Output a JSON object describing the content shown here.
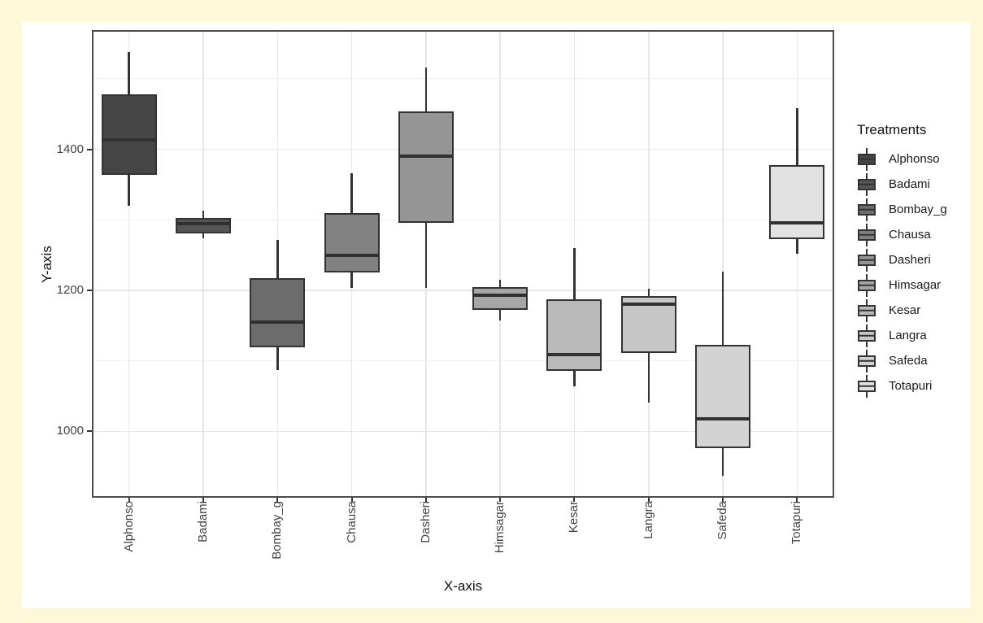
{
  "window": {
    "frame_background": "#FCF8D8",
    "canvas_background": "#FFFFFF"
  },
  "chart_data": {
    "type": "boxplot",
    "xlabel": "X-axis",
    "ylabel": "Y-axis",
    "legend_title": "Treatments",
    "legend_position": "right",
    "grid": true,
    "categories": [
      "Alphonso",
      "Badami",
      "Bombay_g",
      "Chausa",
      "Dasheri",
      "Himsagar",
      "Kesar",
      "Langra",
      "Safeda",
      "Totapuri"
    ],
    "series": [
      {
        "name": "Alphonso",
        "fill": "#464646",
        "whisker_low": 1320,
        "q1": 1365,
        "median": 1413,
        "q3": 1477,
        "whisker_high": 1538
      },
      {
        "name": "Badami",
        "fill": "#555555",
        "whisker_low": 1274,
        "q1": 1282,
        "median": 1294,
        "q3": 1302,
        "whisker_high": 1313
      },
      {
        "name": "Bombay_g",
        "fill": "#6C6C6C",
        "whisker_low": 1087,
        "q1": 1121,
        "median": 1155,
        "q3": 1216,
        "whisker_high": 1272
      },
      {
        "name": "Chausa",
        "fill": "#818181",
        "whisker_low": 1204,
        "q1": 1227,
        "median": 1250,
        "q3": 1308,
        "whisker_high": 1366
      },
      {
        "name": "Dasheri",
        "fill": "#959595",
        "whisker_low": 1204,
        "q1": 1297,
        "median": 1390,
        "q3": 1452,
        "whisker_high": 1516
      },
      {
        "name": "Himsagar",
        "fill": "#A6A6A6",
        "whisker_low": 1157,
        "q1": 1174,
        "median": 1193,
        "q3": 1204,
        "whisker_high": 1215
      },
      {
        "name": "Kesar",
        "fill": "#B9B9B9",
        "whisker_low": 1064,
        "q1": 1087,
        "median": 1109,
        "q3": 1186,
        "whisker_high": 1260
      },
      {
        "name": "Langra",
        "fill": "#C6C6C6",
        "whisker_low": 1041,
        "q1": 1112,
        "median": 1181,
        "q3": 1191,
        "whisker_high": 1202
      },
      {
        "name": "Safeda",
        "fill": "#D3D3D3",
        "whisker_low": 937,
        "q1": 978,
        "median": 1018,
        "q3": 1122,
        "whisker_high": 1226
      },
      {
        "name": "Totapuri",
        "fill": "#E2E2E2",
        "whisker_low": 1252,
        "q1": 1274,
        "median": 1296,
        "q3": 1377,
        "whisker_high": 1458
      }
    ],
    "y_ticks": [
      1000,
      1200,
      1400
    ],
    "y_minor_gridlines": [
      1100,
      1300,
      1500
    ],
    "ylim": [
      906,
      1569
    ],
    "colors": {
      "box_border": "#333333",
      "median_line": "#303030",
      "whisker": "#333333",
      "panel_border": "#4D4D4D",
      "gridline_major": "#E7E7E7",
      "gridline_minor": "#F2F2F2",
      "axis_text": "#444444",
      "title_text": "#111111"
    }
  }
}
